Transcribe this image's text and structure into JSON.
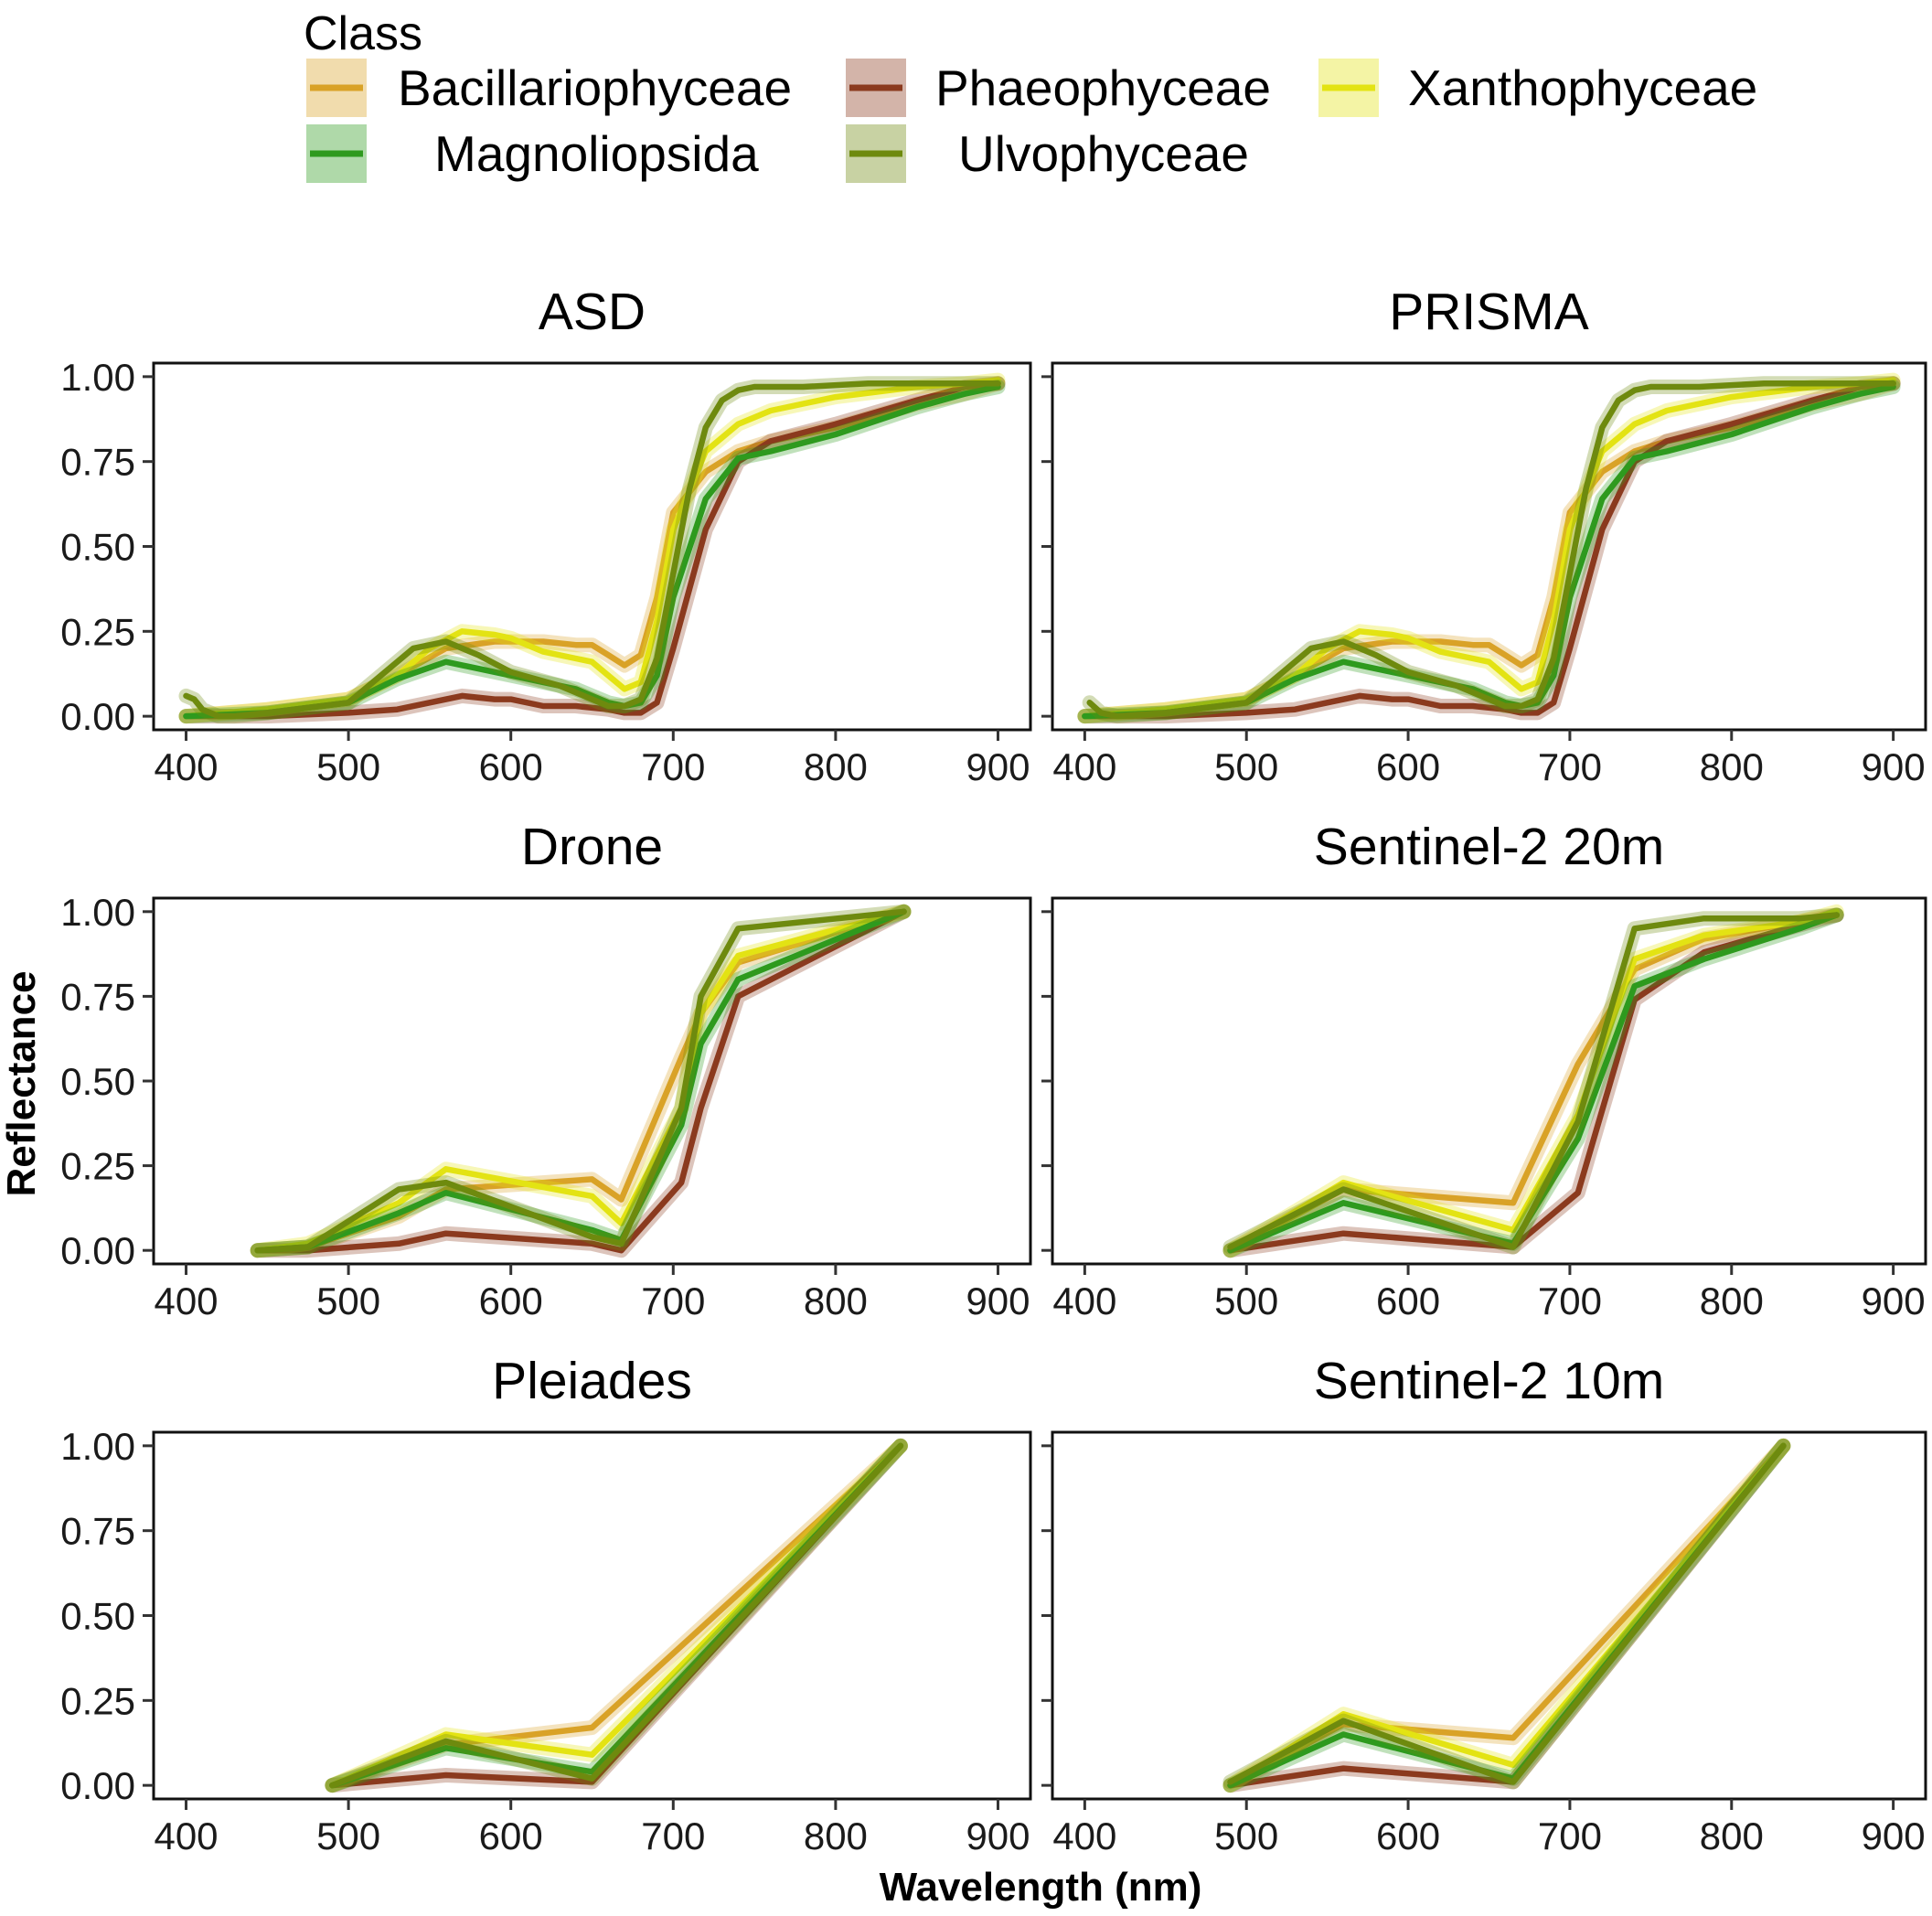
{
  "chart_data": {
    "type": "line",
    "legend": {
      "title": "Class",
      "placement": "top",
      "entries": [
        {
          "name": "Bacillariophyceae",
          "color": "#D9A227"
        },
        {
          "name": "Phaeophyceae",
          "color": "#8B3A1E"
        },
        {
          "name": "Xanthophyceae",
          "color": "#E3E313"
        },
        {
          "name": "Magnoliopsida",
          "color": "#2E9A1E"
        },
        {
          "name": "Ulvophyceae",
          "color": "#6E8A0E"
        }
      ]
    },
    "xlabel": "Wavelength (nm)",
    "ylabel": "Reflectance",
    "xlim": [
      380,
      920
    ],
    "ylim": [
      -0.04,
      1.04
    ],
    "xticks": [
      "400",
      "500",
      "600",
      "700",
      "800",
      "900"
    ],
    "yticks": [
      "0.00",
      "0.25",
      "0.50",
      "0.75",
      "1.00"
    ],
    "grid": false,
    "panels": [
      {
        "title": "ASD",
        "series": [
          {
            "name": "Bacillariophyceae",
            "x": [
              400,
              450,
              500,
              530,
              560,
              590,
              600,
              620,
              640,
              650,
              660,
              670,
              680,
              690,
              700,
              720,
              740,
              760,
              800,
              850,
              880,
              900
            ],
            "y": [
              0.0,
              0.02,
              0.05,
              0.12,
              0.2,
              0.22,
              0.22,
              0.22,
              0.21,
              0.21,
              0.18,
              0.15,
              0.18,
              0.35,
              0.6,
              0.72,
              0.78,
              0.81,
              0.85,
              0.92,
              0.95,
              0.98
            ]
          },
          {
            "name": "Phaeophyceae",
            "x": [
              400,
              450,
              500,
              530,
              550,
              570,
              590,
              600,
              620,
              640,
              660,
              670,
              680,
              690,
              700,
              720,
              740,
              760,
              800,
              850,
              880,
              900
            ],
            "y": [
              0.0,
              0.0,
              0.01,
              0.02,
              0.04,
              0.06,
              0.05,
              0.05,
              0.03,
              0.03,
              0.02,
              0.01,
              0.01,
              0.04,
              0.2,
              0.55,
              0.75,
              0.81,
              0.86,
              0.93,
              0.97,
              0.98
            ]
          },
          {
            "name": "Xanthophyceae",
            "x": [
              400,
              450,
              500,
              530,
              550,
              570,
              590,
              600,
              620,
              640,
              650,
              660,
              670,
              680,
              690,
              700,
              720,
              740,
              760,
              800,
              850,
              880,
              900
            ],
            "y": [
              0.0,
              0.02,
              0.05,
              0.12,
              0.2,
              0.25,
              0.24,
              0.23,
              0.19,
              0.17,
              0.16,
              0.12,
              0.08,
              0.1,
              0.28,
              0.55,
              0.78,
              0.86,
              0.9,
              0.94,
              0.97,
              0.98,
              0.99
            ]
          },
          {
            "name": "Magnoliopsida",
            "x": [
              400,
              450,
              500,
              530,
              560,
              600,
              640,
              660,
              670,
              680,
              690,
              700,
              720,
              740,
              760,
              800,
              850,
              880,
              900
            ],
            "y": [
              0.0,
              0.01,
              0.04,
              0.11,
              0.16,
              0.12,
              0.08,
              0.04,
              0.03,
              0.04,
              0.12,
              0.35,
              0.64,
              0.76,
              0.78,
              0.83,
              0.91,
              0.95,
              0.97
            ]
          },
          {
            "name": "Ulvophyceae",
            "x": [
              400,
              405,
              410,
              420,
              430,
              450,
              500,
              520,
              540,
              560,
              580,
              600,
              630,
              650,
              660,
              670,
              680,
              690,
              700,
              710,
              720,
              730,
              740,
              750,
              780,
              820,
              860,
              900
            ],
            "y": [
              0.06,
              0.05,
              0.02,
              0.0,
              0.0,
              0.01,
              0.04,
              0.12,
              0.2,
              0.22,
              0.18,
              0.13,
              0.09,
              0.05,
              0.03,
              0.03,
              0.05,
              0.17,
              0.42,
              0.67,
              0.85,
              0.93,
              0.96,
              0.97,
              0.97,
              0.98,
              0.98,
              0.98
            ]
          }
        ]
      },
      {
        "title": "PRISMA",
        "series": [
          {
            "name": "Bacillariophyceae",
            "x": [
              400,
              450,
              500,
              530,
              560,
              590,
              600,
              620,
              640,
              650,
              660,
              670,
              680,
              690,
              700,
              720,
              740,
              760,
              800,
              850,
              880,
              900
            ],
            "y": [
              0.0,
              0.02,
              0.05,
              0.12,
              0.2,
              0.22,
              0.22,
              0.22,
              0.21,
              0.21,
              0.18,
              0.15,
              0.18,
              0.35,
              0.6,
              0.72,
              0.78,
              0.81,
              0.85,
              0.92,
              0.95,
              0.98
            ]
          },
          {
            "name": "Phaeophyceae",
            "x": [
              400,
              450,
              500,
              530,
              550,
              570,
              590,
              600,
              620,
              640,
              660,
              670,
              680,
              690,
              700,
              720,
              740,
              760,
              800,
              850,
              880,
              900
            ],
            "y": [
              0.0,
              0.0,
              0.01,
              0.02,
              0.04,
              0.06,
              0.05,
              0.05,
              0.03,
              0.03,
              0.02,
              0.01,
              0.01,
              0.04,
              0.2,
              0.55,
              0.75,
              0.81,
              0.86,
              0.93,
              0.97,
              0.98
            ]
          },
          {
            "name": "Xanthophyceae",
            "x": [
              400,
              450,
              500,
              530,
              550,
              570,
              590,
              600,
              620,
              640,
              650,
              660,
              670,
              680,
              690,
              700,
              720,
              740,
              760,
              800,
              850,
              880,
              900
            ],
            "y": [
              0.0,
              0.02,
              0.05,
              0.12,
              0.2,
              0.25,
              0.24,
              0.23,
              0.19,
              0.17,
              0.16,
              0.12,
              0.08,
              0.1,
              0.28,
              0.55,
              0.78,
              0.86,
              0.9,
              0.94,
              0.97,
              0.98,
              0.99
            ]
          },
          {
            "name": "Magnoliopsida",
            "x": [
              400,
              450,
              500,
              530,
              560,
              600,
              640,
              660,
              670,
              680,
              690,
              700,
              720,
              740,
              760,
              800,
              850,
              880,
              900
            ],
            "y": [
              0.0,
              0.01,
              0.04,
              0.11,
              0.16,
              0.12,
              0.08,
              0.04,
              0.03,
              0.04,
              0.12,
              0.35,
              0.64,
              0.76,
              0.78,
              0.83,
              0.91,
              0.95,
              0.97
            ]
          },
          {
            "name": "Ulvophyceae",
            "x": [
              403,
              410,
              420,
              450,
              500,
              520,
              540,
              560,
              580,
              600,
              630,
              650,
              660,
              670,
              680,
              690,
              700,
              710,
              720,
              730,
              740,
              750,
              780,
              820,
              860,
              900
            ],
            "y": [
              0.04,
              0.01,
              0.0,
              0.01,
              0.04,
              0.12,
              0.2,
              0.22,
              0.18,
              0.13,
              0.09,
              0.05,
              0.03,
              0.03,
              0.05,
              0.17,
              0.42,
              0.67,
              0.85,
              0.93,
              0.96,
              0.97,
              0.97,
              0.98,
              0.98,
              0.98
            ]
          }
        ]
      },
      {
        "title": "Drone",
        "series": [
          {
            "name": "Bacillariophyceae",
            "x": [
              444,
              475,
              531,
              560,
              650,
              668,
              705,
              717,
              740,
              842
            ],
            "y": [
              0.0,
              0.01,
              0.1,
              0.18,
              0.21,
              0.15,
              0.57,
              0.7,
              0.85,
              1.0
            ]
          },
          {
            "name": "Phaeophyceae",
            "x": [
              444,
              475,
              531,
              560,
              650,
              668,
              705,
              717,
              740,
              842
            ],
            "y": [
              0.0,
              0.0,
              0.02,
              0.05,
              0.02,
              0.0,
              0.2,
              0.42,
              0.75,
              1.0
            ]
          },
          {
            "name": "Xanthophyceae",
            "x": [
              444,
              475,
              531,
              560,
              650,
              668,
              705,
              717,
              740,
              842
            ],
            "y": [
              0.0,
              0.02,
              0.14,
              0.24,
              0.16,
              0.08,
              0.42,
              0.7,
              0.87,
              1.0
            ]
          },
          {
            "name": "Magnoliopsida",
            "x": [
              444,
              475,
              531,
              560,
              650,
              668,
              705,
              717,
              740,
              842
            ],
            "y": [
              0.0,
              0.01,
              0.11,
              0.17,
              0.06,
              0.03,
              0.37,
              0.61,
              0.8,
              1.0
            ]
          },
          {
            "name": "Ulvophyceae",
            "x": [
              444,
              475,
              531,
              560,
              650,
              668,
              705,
              717,
              740,
              842
            ],
            "y": [
              0.0,
              0.01,
              0.18,
              0.2,
              0.04,
              0.02,
              0.42,
              0.75,
              0.95,
              1.0
            ]
          }
        ]
      },
      {
        "title": "Sentinel-2 20m",
        "series": [
          {
            "name": "Bacillariophyceae",
            "x": [
              490,
              560,
              665,
              705,
              740,
              783,
              842,
              865
            ],
            "y": [
              0.0,
              0.18,
              0.14,
              0.55,
              0.83,
              0.92,
              0.97,
              0.99
            ]
          },
          {
            "name": "Phaeophyceae",
            "x": [
              490,
              560,
              665,
              705,
              740,
              783,
              842,
              865
            ],
            "y": [
              0.0,
              0.05,
              0.01,
              0.17,
              0.74,
              0.88,
              0.96,
              0.99
            ]
          },
          {
            "name": "Xanthophyceae",
            "x": [
              490,
              560,
              665,
              705,
              740,
              783,
              842,
              865
            ],
            "y": [
              0.0,
              0.2,
              0.06,
              0.4,
              0.86,
              0.93,
              0.97,
              1.0
            ]
          },
          {
            "name": "Magnoliopsida",
            "x": [
              490,
              560,
              665,
              705,
              740,
              783,
              842,
              865
            ],
            "y": [
              0.0,
              0.14,
              0.02,
              0.33,
              0.78,
              0.86,
              0.95,
              0.99
            ]
          },
          {
            "name": "Ulvophyceae",
            "x": [
              490,
              560,
              665,
              705,
              740,
              783,
              842,
              865
            ],
            "y": [
              0.01,
              0.18,
              0.01,
              0.38,
              0.95,
              0.98,
              0.98,
              0.99
            ]
          }
        ]
      },
      {
        "title": "Pleiades",
        "series": [
          {
            "name": "Bacillariophyceae",
            "x": [
              490,
              560,
              650,
              840
            ],
            "y": [
              0.0,
              0.12,
              0.17,
              1.0
            ]
          },
          {
            "name": "Phaeophyceae",
            "x": [
              490,
              560,
              650,
              840
            ],
            "y": [
              0.0,
              0.03,
              0.01,
              1.0
            ]
          },
          {
            "name": "Xanthophyceae",
            "x": [
              490,
              560,
              650,
              840
            ],
            "y": [
              0.0,
              0.15,
              0.09,
              1.0
            ]
          },
          {
            "name": "Magnoliopsida",
            "x": [
              490,
              560,
              650,
              840
            ],
            "y": [
              0.0,
              0.11,
              0.04,
              1.0
            ]
          },
          {
            "name": "Ulvophyceae",
            "x": [
              490,
              560,
              650,
              840
            ],
            "y": [
              0.0,
              0.13,
              0.02,
              1.0
            ]
          }
        ]
      },
      {
        "title": "Sentinel-2 10m",
        "series": [
          {
            "name": "Bacillariophyceae",
            "x": [
              490,
              560,
              665,
              832
            ],
            "y": [
              0.0,
              0.18,
              0.14,
              1.0
            ]
          },
          {
            "name": "Phaeophyceae",
            "x": [
              490,
              560,
              665,
              832
            ],
            "y": [
              0.0,
              0.05,
              0.01,
              1.0
            ]
          },
          {
            "name": "Xanthophyceae",
            "x": [
              490,
              560,
              665,
              832
            ],
            "y": [
              0.0,
              0.21,
              0.06,
              1.0
            ]
          },
          {
            "name": "Magnoliopsida",
            "x": [
              490,
              560,
              665,
              832
            ],
            "y": [
              0.0,
              0.15,
              0.02,
              1.0
            ]
          },
          {
            "name": "Ulvophyceae",
            "x": [
              490,
              560,
              665,
              832
            ],
            "y": [
              0.01,
              0.19,
              0.01,
              1.0
            ]
          }
        ]
      }
    ]
  }
}
